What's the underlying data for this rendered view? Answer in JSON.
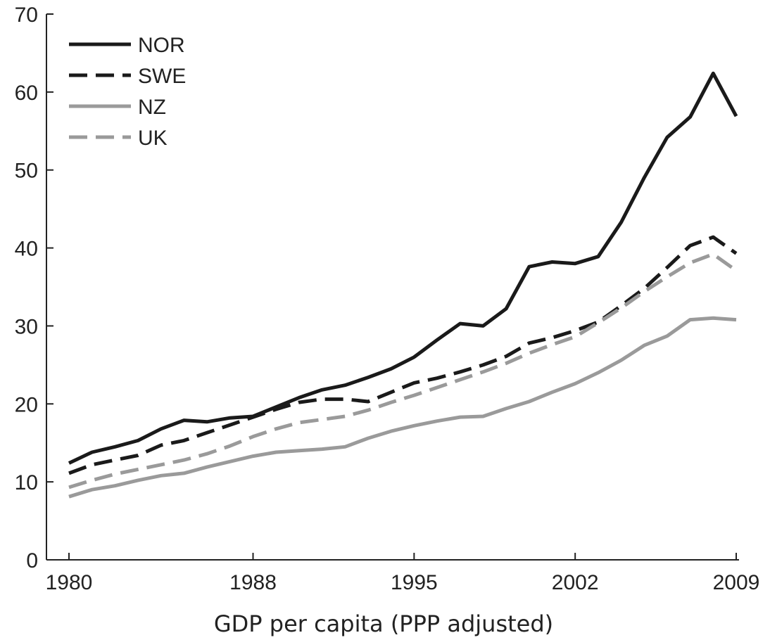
{
  "chart_data": {
    "type": "line",
    "title": "",
    "xlabel": "GDP per capita (PPP adjusted)",
    "ylabel": "",
    "xlim": [
      1979,
      2009
    ],
    "ylim": [
      0,
      70
    ],
    "x_ticks": [
      1980,
      1988,
      1995,
      2002,
      2009
    ],
    "y_ticks": [
      0,
      10,
      20,
      30,
      40,
      50,
      60,
      70
    ],
    "grid": false,
    "legend_position": "top-left",
    "x": [
      1980,
      1981,
      1982,
      1983,
      1984,
      1985,
      1986,
      1987,
      1988,
      1989,
      1990,
      1991,
      1992,
      1993,
      1994,
      1995,
      1996,
      1997,
      1998,
      1999,
      2000,
      2001,
      2002,
      2003,
      2004,
      2005,
      2006,
      2007,
      2008,
      2009
    ],
    "series": [
      {
        "name": "NOR",
        "color": "#1a1a1a",
        "dash": "solid",
        "values": [
          12.4,
          13.8,
          14.5,
          15.3,
          16.8,
          17.9,
          17.7,
          18.2,
          18.4,
          19.6,
          20.8,
          21.8,
          22.4,
          23.4,
          24.5,
          26.0,
          28.2,
          30.3,
          30.0,
          32.2,
          37.6,
          38.2,
          38.0,
          38.9,
          43.3,
          49.0,
          54.2,
          56.8,
          62.4,
          56.9
        ]
      },
      {
        "name": "SWE",
        "color": "#1a1a1a",
        "dash": "dashed",
        "values": [
          11.1,
          12.2,
          12.8,
          13.4,
          14.7,
          15.3,
          16.3,
          17.3,
          18.3,
          19.3,
          20.2,
          20.6,
          20.6,
          20.3,
          21.5,
          22.7,
          23.3,
          24.1,
          25.0,
          26.1,
          27.8,
          28.5,
          29.4,
          30.5,
          32.6,
          34.8,
          37.5,
          40.3,
          41.4,
          39.3
        ]
      },
      {
        "name": "NZ",
        "color": "#9a9a9a",
        "dash": "solid",
        "values": [
          8.1,
          9.0,
          9.5,
          10.2,
          10.8,
          11.1,
          11.9,
          12.6,
          13.3,
          13.8,
          14.0,
          14.2,
          14.5,
          15.6,
          16.5,
          17.2,
          17.8,
          18.3,
          18.4,
          19.4,
          20.3,
          21.5,
          22.6,
          24.0,
          25.6,
          27.5,
          28.7,
          30.8,
          31.0,
          30.8
        ]
      },
      {
        "name": "UK",
        "color": "#9a9a9a",
        "dash": "dashed",
        "values": [
          9.3,
          10.2,
          11.0,
          11.6,
          12.2,
          12.8,
          13.6,
          14.6,
          15.8,
          16.8,
          17.6,
          18.0,
          18.4,
          19.2,
          20.2,
          21.1,
          22.1,
          23.1,
          24.1,
          25.2,
          26.5,
          27.6,
          28.6,
          30.4,
          32.3,
          34.4,
          36.3,
          38.1,
          39.2,
          37.1
        ]
      }
    ]
  }
}
